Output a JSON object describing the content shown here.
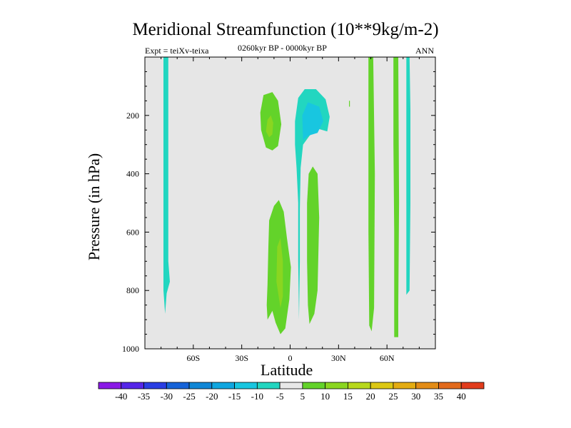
{
  "chart_data": {
    "type": "contour",
    "title": "Meridional Streamfunction (10**9kg/m-2)",
    "subtitle_left": "Expt = teiXv-teixa",
    "subtitle_center": "0260kyr BP - 0000kyr BP",
    "subtitle_right": "ANN",
    "xlabel": "Latitude",
    "ylabel": "Pressure (in hPa)",
    "xlim": [
      -90,
      90
    ],
    "ylim": [
      1000,
      0
    ],
    "x_ticks": [
      {
        "value": -60,
        "label": "60S"
      },
      {
        "value": -30,
        "label": "30S"
      },
      {
        "value": 0,
        "label": "0"
      },
      {
        "value": 30,
        "label": "30N"
      },
      {
        "value": 60,
        "label": "60N"
      }
    ],
    "y_ticks": [
      {
        "value": 200,
        "label": "200"
      },
      {
        "value": 400,
        "label": "400"
      },
      {
        "value": 600,
        "label": "600"
      },
      {
        "value": 800,
        "label": "800"
      },
      {
        "value": 1000,
        "label": "1000"
      }
    ],
    "background_color": "#e6e6e6",
    "colorbar": {
      "labels": [
        "-40",
        "-35",
        "-30",
        "-25",
        "-20",
        "-15",
        "-10",
        "-5",
        "5",
        "10",
        "15",
        "20",
        "25",
        "30",
        "35",
        "40"
      ],
      "colors": [
        "#8a1ae6",
        "#5525e8",
        "#2a3ee3",
        "#1663d8",
        "#0f86d6",
        "#0fa6e0",
        "#18c6e0",
        "#22d6c0",
        "#e8e8e8",
        "#63d32a",
        "#8ad620",
        "#b7d81c",
        "#dcc814",
        "#e4ac12",
        "#e38c16",
        "#e26a1c",
        "#e23c1c"
      ]
    },
    "regions": [
      {
        "sign": "negative",
        "level": -5,
        "color": "#22d6c0",
        "points": [
          [
            -78.5,
            0
          ],
          [
            -75.5,
            0
          ],
          [
            -75.5,
            300
          ],
          [
            -75.5,
            700
          ],
          [
            -74.5,
            770
          ],
          [
            -76.5,
            810
          ],
          [
            -77.5,
            880
          ],
          [
            -78.5,
            800
          ],
          [
            -78.5,
            500
          ],
          [
            -78.5,
            200
          ]
        ]
      },
      {
        "sign": "negative",
        "level": -5,
        "color": "#22d6c0",
        "points": [
          [
            5,
            140
          ],
          [
            9,
            110
          ],
          [
            16,
            110
          ],
          [
            22,
            145
          ],
          [
            24.5,
            205
          ],
          [
            23,
            255
          ],
          [
            17,
            245
          ],
          [
            12,
            270
          ],
          [
            8,
            300
          ],
          [
            6.5,
            380
          ],
          [
            6,
            520
          ],
          [
            6,
            700
          ],
          [
            5.5,
            900
          ],
          [
            5,
            700
          ],
          [
            5,
            500
          ],
          [
            4,
            380
          ],
          [
            3,
            300
          ],
          [
            3,
            220
          ]
        ]
      },
      {
        "sign": "negative",
        "level": -10,
        "color": "#18c6e0",
        "points": [
          [
            7.5,
            200
          ],
          [
            11,
            155
          ],
          [
            18,
            170
          ],
          [
            20.5,
            220
          ],
          [
            17,
            260
          ],
          [
            11,
            270
          ],
          [
            8,
            285
          ]
        ]
      },
      {
        "sign": "negative",
        "level": -5,
        "color": "#22d6c0",
        "points": [
          [
            72,
            0
          ],
          [
            74,
            0
          ],
          [
            74.5,
            180
          ],
          [
            74.5,
            500
          ],
          [
            74,
            800
          ],
          [
            72,
            815
          ],
          [
            72,
            600
          ],
          [
            72,
            300
          ]
        ]
      },
      {
        "sign": "positive",
        "level": 5,
        "color": "#63d32a",
        "points": [
          [
            -16.5,
            130
          ],
          [
            -11,
            120
          ],
          [
            -7.5,
            150
          ],
          [
            -5.5,
            230
          ],
          [
            -7.5,
            305
          ],
          [
            -11,
            320
          ],
          [
            -15,
            310
          ],
          [
            -18,
            250
          ],
          [
            -18.5,
            190
          ]
        ]
      },
      {
        "sign": "positive",
        "level": 10,
        "color": "#8ad620",
        "points": [
          [
            -14,
            215
          ],
          [
            -12,
            200
          ],
          [
            -10.5,
            225
          ],
          [
            -11,
            265
          ],
          [
            -13,
            275
          ],
          [
            -15,
            255
          ]
        ]
      },
      {
        "sign": "positive",
        "level": 5,
        "color": "#63d32a",
        "points": [
          [
            -14,
            780
          ],
          [
            -13.5,
            650
          ],
          [
            -13,
            560
          ],
          [
            -10,
            510
          ],
          [
            -7,
            490
          ],
          [
            -4,
            530
          ],
          [
            -2,
            620
          ],
          [
            0.5,
            720
          ],
          [
            -0.5,
            830
          ],
          [
            -3,
            930
          ],
          [
            -6,
            950
          ],
          [
            -9,
            910
          ],
          [
            -11,
            870
          ],
          [
            -14,
            900
          ],
          [
            -14.5,
            850
          ]
        ]
      },
      {
        "sign": "positive",
        "level": 10,
        "color": "#8ad620",
        "points": [
          [
            -8.5,
            770
          ],
          [
            -8,
            650
          ],
          [
            -6,
            620
          ],
          [
            -4.5,
            700
          ],
          [
            -4.5,
            820
          ],
          [
            -6,
            860
          ]
        ]
      },
      {
        "sign": "positive",
        "level": 5,
        "color": "#63d32a",
        "points": [
          [
            10.5,
            700
          ],
          [
            10.5,
            500
          ],
          [
            11.5,
            400
          ],
          [
            14,
            375
          ],
          [
            17,
            400
          ],
          [
            18,
            550
          ],
          [
            17,
            800
          ],
          [
            15,
            880
          ],
          [
            12,
            915
          ],
          [
            11,
            850
          ]
        ]
      },
      {
        "sign": "positive",
        "level": 5,
        "color": "#63d32a",
        "points": [
          [
            48.5,
            0
          ],
          [
            51.5,
            0
          ],
          [
            52.5,
            400
          ],
          [
            52,
            860
          ],
          [
            50.5,
            940
          ],
          [
            49,
            920
          ],
          [
            48.5,
            600
          ],
          [
            48.5,
            200
          ]
        ]
      },
      {
        "sign": "positive",
        "level": 5,
        "color": "#63d32a",
        "points": [
          [
            64,
            0
          ],
          [
            67,
            0
          ],
          [
            67.5,
            500
          ],
          [
            67,
            860
          ],
          [
            67,
            960
          ],
          [
            64.5,
            960
          ],
          [
            64.5,
            600
          ],
          [
            64,
            300
          ]
        ]
      },
      {
        "sign": "positive",
        "level": 5,
        "color": "#63d32a",
        "points": [
          [
            36.5,
            150
          ],
          [
            37,
            150
          ],
          [
            37,
            170
          ],
          [
            36.5,
            170
          ]
        ]
      }
    ]
  }
}
